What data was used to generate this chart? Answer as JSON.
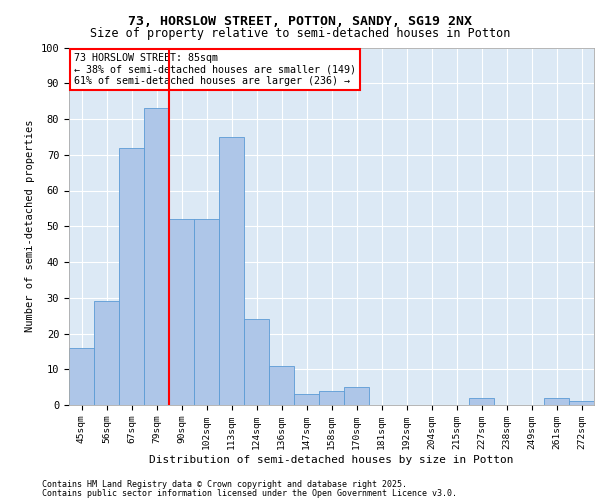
{
  "title1": "73, HORSLOW STREET, POTTON, SANDY, SG19 2NX",
  "title2": "Size of property relative to semi-detached houses in Potton",
  "xlabel": "Distribution of semi-detached houses by size in Potton",
  "ylabel": "Number of semi-detached properties",
  "categories": [
    "45sqm",
    "56sqm",
    "67sqm",
    "79sqm",
    "90sqm",
    "102sqm",
    "113sqm",
    "124sqm",
    "136sqm",
    "147sqm",
    "158sqm",
    "170sqm",
    "181sqm",
    "192sqm",
    "204sqm",
    "215sqm",
    "227sqm",
    "238sqm",
    "249sqm",
    "261sqm",
    "272sqm"
  ],
  "values": [
    16,
    29,
    72,
    83,
    52,
    52,
    75,
    24,
    11,
    3,
    4,
    5,
    0,
    0,
    0,
    0,
    2,
    0,
    0,
    2,
    1
  ],
  "bar_color": "#aec6e8",
  "bar_edge_color": "#5b9bd5",
  "red_line_index": 3.5,
  "annotation_text": "73 HORSLOW STREET: 85sqm\n← 38% of semi-detached houses are smaller (149)\n61% of semi-detached houses are larger (236) →",
  "ylim": [
    0,
    100
  ],
  "yticks": [
    0,
    10,
    20,
    30,
    40,
    50,
    60,
    70,
    80,
    90,
    100
  ],
  "plot_bg_color": "#dce9f5",
  "footer1": "Contains HM Land Registry data © Crown copyright and database right 2025.",
  "footer2": "Contains public sector information licensed under the Open Government Licence v3.0."
}
